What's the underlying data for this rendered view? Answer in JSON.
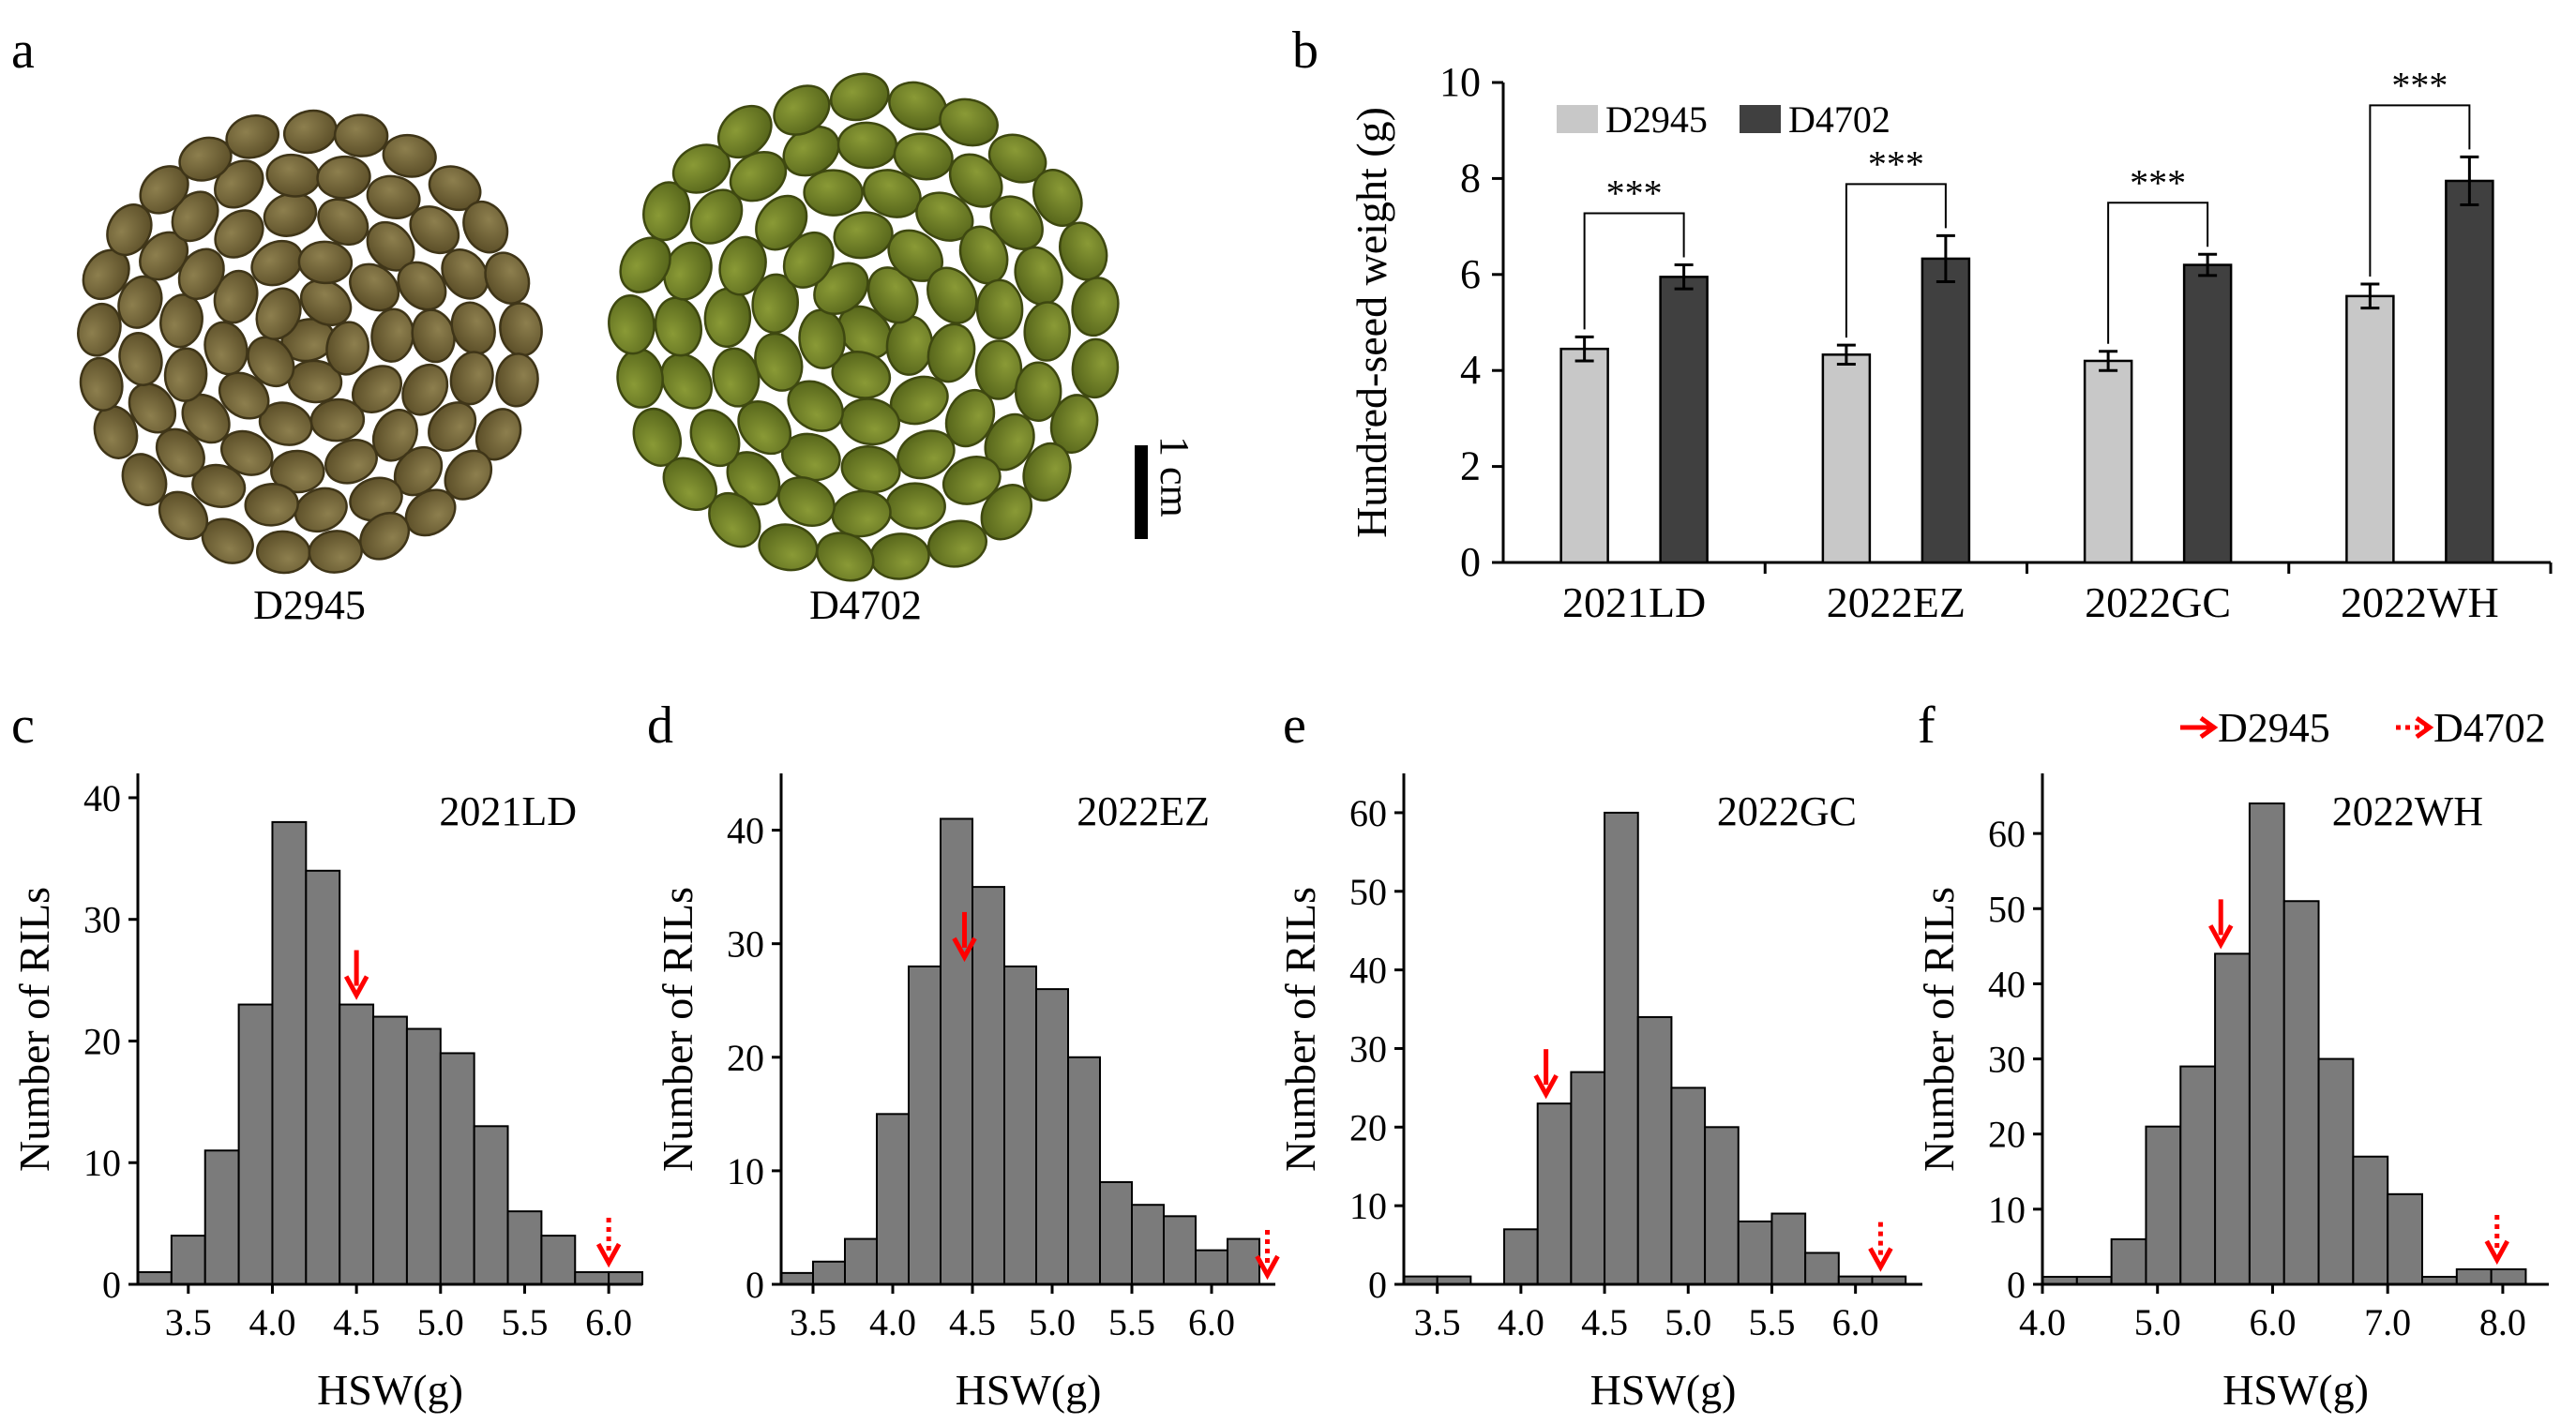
{
  "figure": {
    "panel_labels": [
      "a",
      "b",
      "c",
      "d",
      "e",
      "f"
    ],
    "photo": {
      "left_label": "D2945",
      "right_label": "D4702",
      "scale_label": "1 cm",
      "colors": {
        "left_seed": "#6b5e33",
        "left_edge": "#3f3518",
        "right_seed": "#6b7a22",
        "right_edge": "#3e4810"
      }
    }
  },
  "chart_data": [
    {
      "type": "bar",
      "panel": "b",
      "categories": [
        "2021LD",
        "2022EZ",
        "2022GC",
        "2022WH"
      ],
      "series": [
        {
          "name": "D2945",
          "values": [
            4.45,
            4.33,
            4.2,
            5.55
          ],
          "errors": [
            0.25,
            0.2,
            0.2,
            0.25
          ],
          "color": "#c8c8c8"
        },
        {
          "name": "D4702",
          "values": [
            5.95,
            6.33,
            6.2,
            7.95
          ],
          "errors": [
            0.25,
            0.48,
            0.22,
            0.5
          ],
          "color": "#404040"
        }
      ],
      "significance": [
        "***",
        "***",
        "***",
        "***"
      ],
      "ylabel": "Hundred-seed weight (g)",
      "ylim": [
        0,
        10
      ],
      "yticks": [
        "0",
        "2",
        "4",
        "6",
        "8",
        "10"
      ],
      "legend_placement": "top-left"
    },
    {
      "type": "bar",
      "panel": "c",
      "title": "2021LD",
      "xlabel": "HSW(g)",
      "ylabel": "Number of RILs",
      "bin_start": 3.2,
      "bin_width": 0.2,
      "values": [
        1,
        4,
        11,
        23,
        38,
        34,
        23,
        22,
        21,
        19,
        13,
        6,
        4,
        1,
        1
      ],
      "xlim": [
        3.2,
        6.2
      ],
      "ylim": [
        0,
        42
      ],
      "xticks": [
        {
          "v": 3.5,
          "l": "3.5"
        },
        {
          "v": 4.0,
          "l": "4.0"
        },
        {
          "v": 4.5,
          "l": "4.5"
        },
        {
          "v": 5.0,
          "l": "5.0"
        },
        {
          "v": 5.5,
          "l": "5.5"
        },
        {
          "v": 6.0,
          "l": "6.0"
        }
      ],
      "yticks": [
        {
          "v": 0,
          "l": "0"
        },
        {
          "v": 10,
          "l": "10"
        },
        {
          "v": 20,
          "l": "20"
        },
        {
          "v": 30,
          "l": "30"
        },
        {
          "v": 40,
          "l": "40"
        }
      ],
      "arrows": [
        {
          "x": 4.5,
          "y": 23,
          "style": "solid"
        },
        {
          "x": 6.0,
          "y": 1,
          "style": "dotted"
        }
      ]
    },
    {
      "type": "bar",
      "panel": "d",
      "title": "2022EZ",
      "xlabel": "HSW(g)",
      "ylabel": "Number of RILs",
      "bin_start": 3.3,
      "bin_width": 0.2,
      "values": [
        1,
        2,
        4,
        15,
        28,
        41,
        35,
        28,
        26,
        20,
        9,
        7,
        6,
        3,
        4
      ],
      "xlim": [
        3.3,
        6.4
      ],
      "ylim": [
        0,
        45
      ],
      "xticks": [
        {
          "v": 3.5,
          "l": "3.5"
        },
        {
          "v": 4.0,
          "l": "4.0"
        },
        {
          "v": 4.5,
          "l": "4.5"
        },
        {
          "v": 5.0,
          "l": "5.0"
        },
        {
          "v": 5.5,
          "l": "5.5"
        },
        {
          "v": 6.0,
          "l": "6.0"
        }
      ],
      "yticks": [
        {
          "v": 0,
          "l": "0"
        },
        {
          "v": 10,
          "l": "10"
        },
        {
          "v": 20,
          "l": "20"
        },
        {
          "v": 30,
          "l": "30"
        },
        {
          "v": 40,
          "l": "40"
        }
      ],
      "arrows": [
        {
          "x": 4.45,
          "y": 28,
          "style": "solid"
        },
        {
          "x": 6.35,
          "y": 0,
          "style": "dotted"
        }
      ]
    },
    {
      "type": "bar",
      "panel": "e",
      "title": "2022GC",
      "xlabel": "HSW(g)",
      "ylabel": "Number of RILs",
      "bin_start": 3.3,
      "bin_width": 0.2,
      "values": [
        1,
        1,
        0,
        7,
        23,
        27,
        60,
        34,
        25,
        20,
        8,
        9,
        4,
        1,
        1
      ],
      "xlim": [
        3.3,
        6.4
      ],
      "ylim": [
        0,
        65
      ],
      "xticks": [
        {
          "v": 3.5,
          "l": "3.5"
        },
        {
          "v": 4.0,
          "l": "4.0"
        },
        {
          "v": 4.5,
          "l": "4.5"
        },
        {
          "v": 5.0,
          "l": "5.0"
        },
        {
          "v": 5.5,
          "l": "5.5"
        },
        {
          "v": 6.0,
          "l": "6.0"
        }
      ],
      "yticks": [
        {
          "v": 0,
          "l": "0"
        },
        {
          "v": 10,
          "l": "10"
        },
        {
          "v": 20,
          "l": "20"
        },
        {
          "v": 30,
          "l": "30"
        },
        {
          "v": 40,
          "l": "40"
        },
        {
          "v": 50,
          "l": "50"
        },
        {
          "v": 60,
          "l": "60"
        }
      ],
      "arrows": [
        {
          "x": 4.15,
          "y": 23,
          "style": "solid"
        },
        {
          "x": 6.15,
          "y": 1,
          "style": "dotted"
        }
      ]
    },
    {
      "type": "bar",
      "panel": "f",
      "title": "2022WH",
      "xlabel": "HSW(g)",
      "ylabel": "Number of RILs",
      "bin_start": 4.0,
      "bin_width": 0.3,
      "values": [
        1,
        1,
        6,
        21,
        29,
        44,
        64,
        51,
        30,
        17,
        12,
        1,
        2,
        2
      ],
      "xlim": [
        4.0,
        8.4
      ],
      "ylim": [
        0,
        68
      ],
      "xticks": [
        {
          "v": 4.0,
          "l": "4.0"
        },
        {
          "v": 5.0,
          "l": "5.0"
        },
        {
          "v": 6.0,
          "l": "6.0"
        },
        {
          "v": 7.0,
          "l": "7.0"
        },
        {
          "v": 8.0,
          "l": "8.0"
        }
      ],
      "yticks": [
        {
          "v": 0,
          "l": "0"
        },
        {
          "v": 10,
          "l": "10"
        },
        {
          "v": 20,
          "l": "20"
        },
        {
          "v": 30,
          "l": "30"
        },
        {
          "v": 40,
          "l": "40"
        },
        {
          "v": 50,
          "l": "50"
        },
        {
          "v": 60,
          "l": "60"
        }
      ],
      "arrows": [
        {
          "x": 5.55,
          "y": 44,
          "style": "solid"
        },
        {
          "x": 7.95,
          "y": 2,
          "style": "dotted"
        }
      ],
      "legend": [
        {
          "label": "D2945",
          "style": "solid"
        },
        {
          "label": "D4702",
          "style": "dotted"
        }
      ]
    }
  ]
}
